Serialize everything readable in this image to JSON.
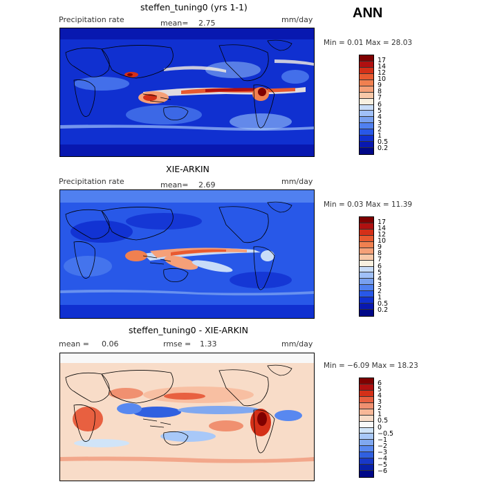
{
  "season": "ANN",
  "units": "mm/day",
  "panels": [
    {
      "title": "steffen_tuning0 (yrs 1-1)",
      "field_label": "Precipitation rate",
      "stat_label": "mean=",
      "stat_value": "2.75",
      "minmax": "Min =    0.01 Max =   28.03",
      "colorbar_labels": [
        "17",
        "14",
        "12",
        "10",
        "9",
        "8",
        "7",
        "6",
        "5",
        "4",
        "3",
        "2",
        "1",
        "0.5",
        "0.2"
      ]
    },
    {
      "title": "XIE-ARKIN",
      "field_label": "Precipitation rate",
      "stat_label": "mean=",
      "stat_value": "2.69",
      "minmax": "Min =    0.03 Max =   11.39",
      "colorbar_labels": [
        "17",
        "14",
        "12",
        "10",
        "9",
        "8",
        "7",
        "6",
        "5",
        "4",
        "3",
        "2",
        "1",
        "0.5",
        "0.2"
      ]
    },
    {
      "title": "steffen_tuning0 - XIE-ARKIN",
      "field_label": "mean =",
      "field_value": "0.06",
      "stat_label": "rmse =",
      "stat_value": "1.33",
      "minmax": "Min =  −6.09 Max =   18.23",
      "colorbar_labels": [
        "6",
        "5",
        "4",
        "3",
        "2",
        "1",
        "0.5",
        "0",
        "−0.5",
        "−1",
        "−2",
        "−3",
        "−4",
        "−5",
        "−6"
      ]
    }
  ],
  "colors": {
    "precip_scale": [
      "#7f0000",
      "#b01010",
      "#d43018",
      "#e85a30",
      "#f08050",
      "#f5a078",
      "#f8c8a8",
      "#f8f0e0",
      "#c8dcf8",
      "#a0c0f8",
      "#78a0f0",
      "#5080f0",
      "#2858e8",
      "#1030d0",
      "#0818b0",
      "#000888"
    ],
    "diff_scale": [
      "#7f0000",
      "#b01010",
      "#d43018",
      "#e86040",
      "#f09070",
      "#f8b898",
      "#f8dcc8",
      "#f8f8f8",
      "#d0e4f8",
      "#a8c8f8",
      "#80a8f0",
      "#5888f0",
      "#3060e0",
      "#1838c8",
      "#0820a8",
      "#000888"
    ]
  }
}
